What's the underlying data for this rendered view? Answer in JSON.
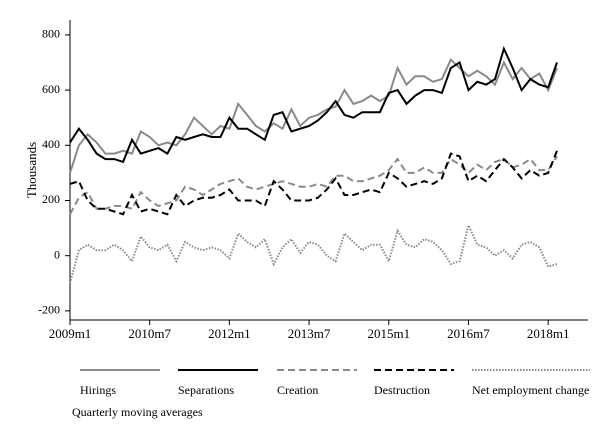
{
  "chart_data": {
    "type": "line",
    "y_label": "Thousands",
    "caption": "Quarterly moving averages",
    "x": [
      0,
      2,
      4,
      6,
      8,
      10,
      12,
      14,
      16,
      18,
      20,
      22,
      24,
      26,
      28,
      30,
      32,
      34,
      36,
      38,
      40,
      42,
      44,
      46,
      48,
      50,
      52,
      54,
      56,
      58,
      60,
      62,
      64,
      66,
      68,
      70,
      72,
      74,
      76,
      78,
      80,
      82,
      84,
      86,
      88,
      90,
      92,
      94,
      96,
      98,
      100,
      102,
      104,
      106,
      108,
      110
    ],
    "xlim": [
      0,
      117
    ],
    "xticks": [
      {
        "value": 0,
        "label": "2009m1"
      },
      {
        "value": 18,
        "label": "2010m7"
      },
      {
        "value": 36,
        "label": "2012m1"
      },
      {
        "value": 54,
        "label": "2013m7"
      },
      {
        "value": 72,
        "label": "2015m1"
      },
      {
        "value": 90,
        "label": "2016m7"
      },
      {
        "value": 108,
        "label": "2018m1"
      }
    ],
    "ylim": [
      -233,
      854
    ],
    "yticks": [
      -200,
      0,
      200,
      400,
      600,
      800
    ],
    "series": [
      {
        "name": "Hirings",
        "color": "#8a8a8a",
        "style": "solid",
        "values": [
          300,
          400,
          440,
          410,
          370,
          370,
          380,
          370,
          450,
          430,
          400,
          410,
          400,
          440,
          500,
          470,
          440,
          470,
          460,
          550,
          510,
          470,
          450,
          480,
          460,
          530,
          470,
          500,
          510,
          530,
          540,
          600,
          550,
          560,
          580,
          560,
          580,
          680,
          620,
          650,
          650,
          630,
          640,
          710,
          680,
          650,
          670,
          650,
          620,
          700,
          640,
          680,
          640,
          660,
          600,
          680
        ]
      },
      {
        "name": "Separations",
        "color": "#000000",
        "style": "solid",
        "values": [
          410,
          460,
          420,
          370,
          350,
          350,
          340,
          420,
          370,
          380,
          390,
          370,
          430,
          420,
          430,
          440,
          430,
          430,
          500,
          460,
          460,
          440,
          420,
          510,
          520,
          450,
          460,
          470,
          490,
          520,
          560,
          510,
          500,
          520,
          520,
          520,
          590,
          600,
          550,
          580,
          600,
          600,
          590,
          680,
          700,
          600,
          630,
          620,
          640,
          750,
          680,
          600,
          640,
          620,
          610,
          700
        ]
      },
      {
        "name": "Creation",
        "color": "#8a8a8a",
        "style": "dashed",
        "values": [
          150,
          210,
          230,
          170,
          170,
          180,
          180,
          170,
          230,
          200,
          180,
          190,
          200,
          250,
          240,
          220,
          240,
          260,
          270,
          280,
          250,
          240,
          250,
          260,
          270,
          260,
          250,
          250,
          260,
          250,
          290,
          290,
          270,
          270,
          280,
          290,
          310,
          350,
          300,
          300,
          320,
          300,
          300,
          350,
          330,
          300,
          330,
          310,
          340,
          350,
          320,
          330,
          350,
          310,
          310,
          360
        ]
      },
      {
        "name": "Destruction",
        "color": "#000000",
        "style": "dashed",
        "values": [
          260,
          270,
          200,
          170,
          170,
          160,
          150,
          220,
          160,
          170,
          160,
          150,
          220,
          180,
          200,
          210,
          210,
          220,
          240,
          200,
          200,
          200,
          180,
          270,
          240,
          200,
          200,
          200,
          210,
          240,
          280,
          220,
          220,
          230,
          240,
          230,
          300,
          280,
          250,
          260,
          270,
          260,
          280,
          370,
          360,
          270,
          290,
          270,
          310,
          350,
          320,
          280,
          310,
          290,
          300,
          380
        ]
      },
      {
        "name": "Net employment change",
        "color": "#8a8a8a",
        "style": "dotted",
        "values": [
          -100,
          20,
          40,
          20,
          20,
          40,
          20,
          -20,
          70,
          30,
          20,
          40,
          -20,
          50,
          30,
          20,
          30,
          20,
          -10,
          80,
          50,
          30,
          60,
          -30,
          30,
          60,
          10,
          50,
          40,
          0,
          -20,
          80,
          50,
          20,
          40,
          40,
          -20,
          90,
          40,
          30,
          60,
          50,
          20,
          -30,
          -20,
          110,
          40,
          30,
          0,
          20,
          -10,
          40,
          50,
          30,
          -40,
          -30
        ]
      }
    ]
  }
}
